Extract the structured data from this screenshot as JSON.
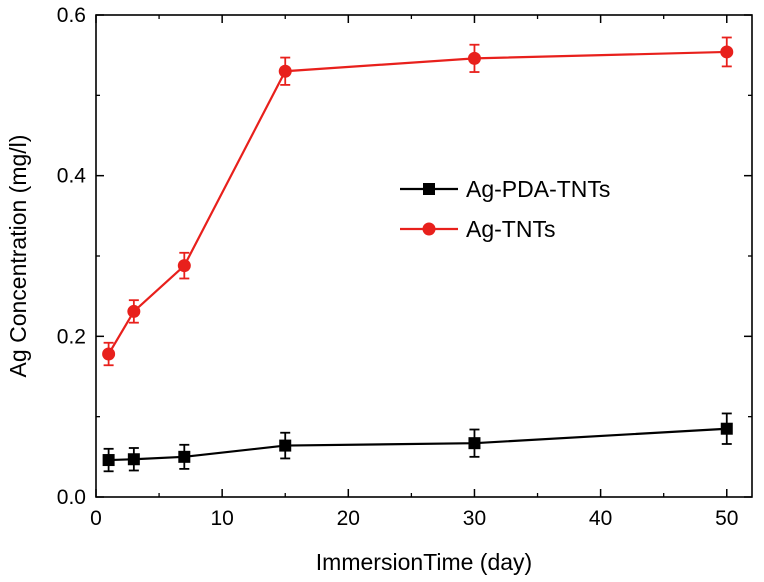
{
  "chart_data": {
    "type": "line",
    "title": "",
    "xlabel": "ImmersionTime (day)",
    "ylabel": "Ag Concentration (mg/l)",
    "xlim": [
      0,
      52
    ],
    "ylim": [
      0,
      0.6
    ],
    "x_ticks": [
      0,
      10,
      20,
      30,
      40,
      50
    ],
    "x_tick_labels": [
      "0",
      "10",
      "20",
      "30",
      "40",
      "50"
    ],
    "y_ticks": [
      0.0,
      0.2,
      0.4,
      0.6
    ],
    "y_tick_labels": [
      "0.0",
      "0.2",
      "0.4",
      "0.6"
    ],
    "grid": false,
    "legend_position": "center-right",
    "series": [
      {
        "name": "Ag-PDA-TNTs",
        "color": "#000000",
        "marker": "square",
        "x": [
          1,
          3,
          7,
          15,
          30,
          50
        ],
        "y": [
          0.046,
          0.047,
          0.05,
          0.064,
          0.067,
          0.085
        ],
        "error": [
          0.014,
          0.014,
          0.015,
          0.016,
          0.017,
          0.019
        ]
      },
      {
        "name": "Ag-TNTs",
        "color": "#e8201c",
        "marker": "circle",
        "x": [
          1,
          3,
          7,
          15,
          30,
          50
        ],
        "y": [
          0.178,
          0.231,
          0.288,
          0.53,
          0.546,
          0.554
        ],
        "error": [
          0.014,
          0.014,
          0.016,
          0.017,
          0.017,
          0.018
        ]
      }
    ]
  }
}
